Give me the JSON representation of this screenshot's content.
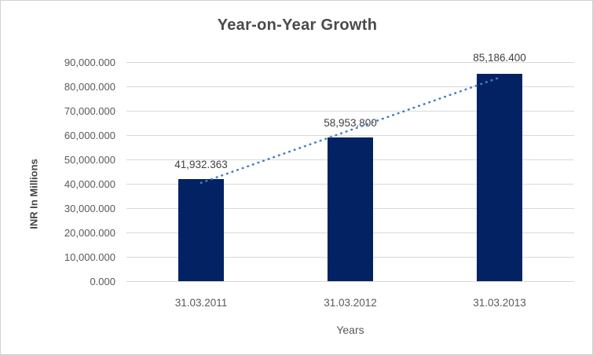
{
  "chart_data": {
    "type": "bar",
    "title": "Year-on-Year Growth",
    "categories": [
      "31.03.2011",
      "31.03.2012",
      "31.03.2013"
    ],
    "values": [
      41932.363,
      58953.8,
      85186.4
    ],
    "data_labels": [
      "41,932.363",
      "58,953.800",
      "85,186.400"
    ],
    "xlabel": "Years",
    "ylabel": "INR In Millions",
    "ylim": [
      0,
      90000
    ],
    "ytick_step": 10000,
    "ytick_labels": [
      "90,000.000",
      "80,000.000",
      "70,000.000",
      "60,000.000",
      "50,000.000",
      "40,000.000",
      "30,000.000",
      "20,000.000",
      "10,000.000",
      "0.000"
    ],
    "legend": "none",
    "grid": true,
    "bar_color": "#032263",
    "trendline": {
      "type": "linear",
      "style": "dotted",
      "color": "#4A7EBB"
    },
    "colors": {
      "gridline": "#d9d9d9",
      "title_text": "#4a4a4a",
      "axis_text": "#595959",
      "label_text": "#404040",
      "border": "#d2d2d2",
      "background": "#ffffff"
    }
  }
}
